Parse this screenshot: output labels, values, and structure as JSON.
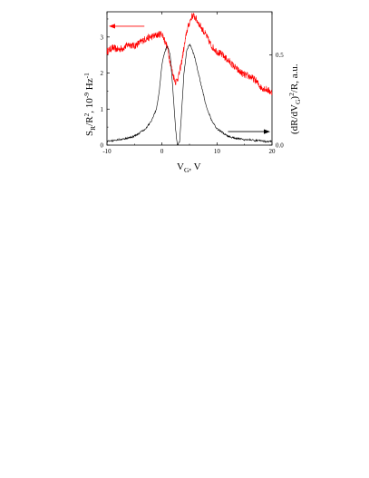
{
  "chart_data": {
    "type": "line",
    "xlabel": {
      "main": "V",
      "sub": "G",
      "rest": ", V"
    },
    "ylabel_left": {
      "p1": "S",
      "s1": "R",
      "p2": "/R",
      "s2": "2",
      "p3": ", 10",
      "s3": "-9",
      "p4": " Hz",
      "s4": "-1"
    },
    "ylabel_right": {
      "p1": "(dR/dV",
      "s1": "G",
      "p2": ")",
      "s2": "2",
      "p3": "/R, a.u."
    },
    "x_ticks": [
      "-10",
      "0",
      "10",
      "20"
    ],
    "y_left_ticks": [
      "0",
      "1",
      "2",
      "3"
    ],
    "y_right_ticks": [
      "0.0",
      "0.5"
    ],
    "xlim": [
      -10,
      20
    ],
    "ylim_left": [
      0,
      3.7
    ],
    "ylim_right": [
      0,
      0.74
    ],
    "grid": false,
    "colors": {
      "noise": "#ff0000",
      "derivative": "#000000",
      "axes": "#000000"
    },
    "series": [
      {
        "axis": "left",
        "x": [
          -10,
          -9,
          -8,
          -7,
          -6,
          -5,
          -4,
          -3,
          -2,
          -1,
          0,
          1,
          1.5,
          2,
          2.5,
          3,
          3.5,
          4,
          4.5,
          5,
          5.5,
          6,
          7,
          8,
          9,
          10,
          11,
          12,
          13,
          14,
          15,
          16,
          17,
          18,
          19,
          20
        ],
        "y": [
          2.6,
          2.7,
          2.65,
          2.7,
          2.8,
          2.75,
          2.85,
          2.95,
          3.0,
          3.05,
          3.1,
          2.7,
          2.3,
          1.95,
          1.75,
          1.9,
          2.25,
          2.7,
          3.15,
          3.4,
          3.6,
          3.55,
          3.3,
          3.05,
          2.75,
          2.6,
          2.5,
          2.35,
          2.2,
          2.05,
          1.95,
          1.9,
          1.8,
          1.6,
          1.55,
          1.45
        ]
      },
      {
        "axis": "right",
        "x": [
          -10,
          -9,
          -8,
          -7,
          -6,
          -5,
          -4,
          -3,
          -2,
          -1,
          -0.5,
          0,
          0.5,
          1,
          1.5,
          2,
          2.5,
          2.8,
          3.2,
          3.5,
          4,
          4.5,
          5,
          5.5,
          6,
          7,
          8,
          9,
          10,
          11,
          12,
          13,
          14,
          15,
          16,
          17,
          18,
          19,
          20
        ],
        "y": [
          0.02,
          0.025,
          0.03,
          0.035,
          0.04,
          0.05,
          0.07,
          0.09,
          0.13,
          0.2,
          0.3,
          0.45,
          0.52,
          0.55,
          0.5,
          0.3,
          0.08,
          0.0,
          0.02,
          0.15,
          0.4,
          0.53,
          0.56,
          0.53,
          0.48,
          0.35,
          0.22,
          0.14,
          0.09,
          0.07,
          0.05,
          0.04,
          0.035,
          0.03,
          0.03,
          0.025,
          0.025,
          0.02,
          0.02
        ]
      }
    ],
    "annotations": [
      {
        "type": "arrow",
        "points_to": "left-axis",
        "color": "#ff0000"
      },
      {
        "type": "arrow",
        "points_to": "right-axis",
        "color": "#000000"
      }
    ]
  }
}
